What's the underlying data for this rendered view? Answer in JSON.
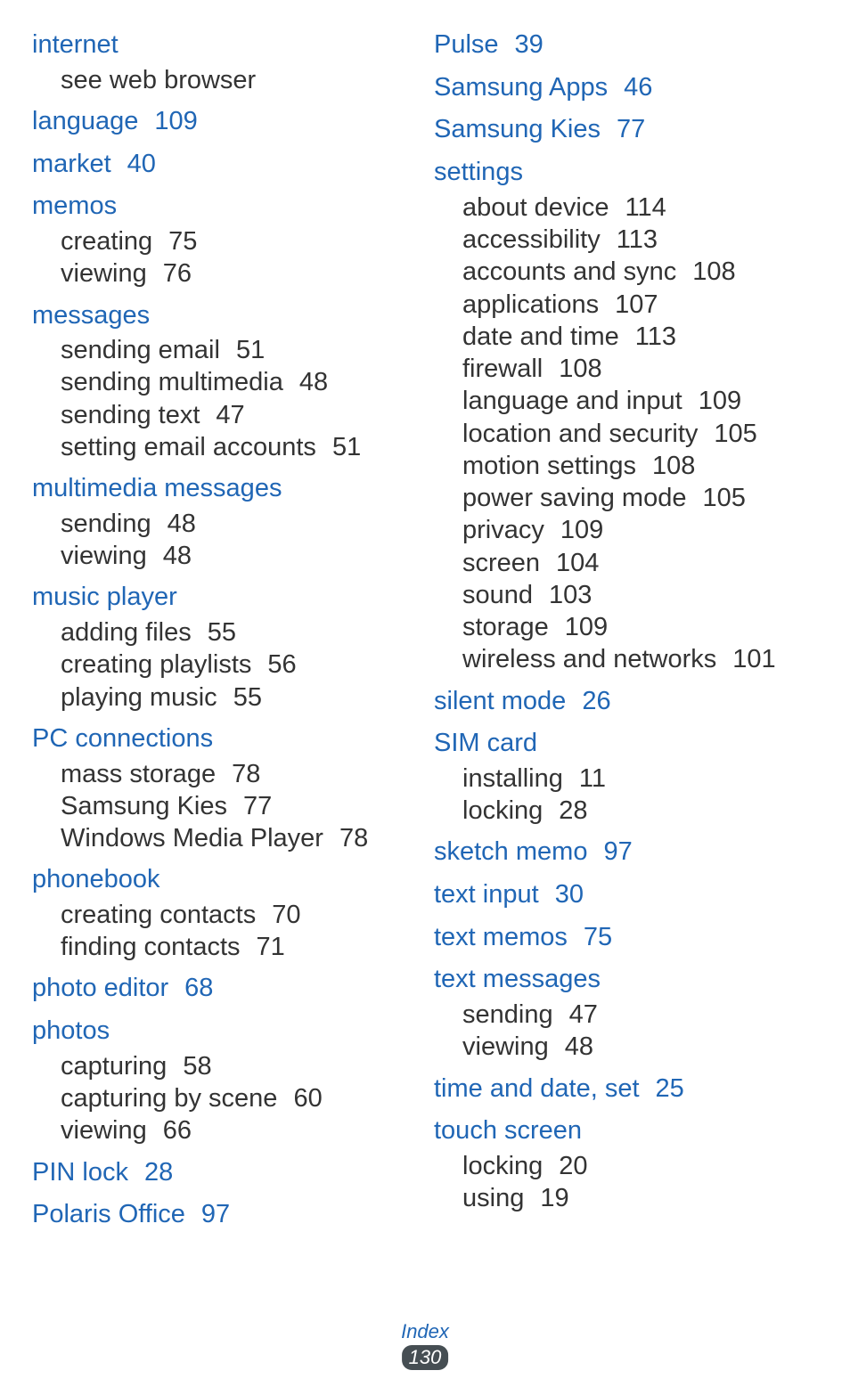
{
  "footer": {
    "section_name": "Index",
    "page_number": "130"
  },
  "left_column": [
    {
      "term": "internet",
      "page": null,
      "subs": [
        {
          "text": "see web browser",
          "page": null
        }
      ]
    },
    {
      "term": "language",
      "page": "109",
      "subs": []
    },
    {
      "term": "market",
      "page": "40",
      "subs": []
    },
    {
      "term": "memos",
      "page": null,
      "subs": [
        {
          "text": "creating",
          "page": "75"
        },
        {
          "text": "viewing",
          "page": "76"
        }
      ]
    },
    {
      "term": "messages",
      "page": null,
      "subs": [
        {
          "text": "sending email",
          "page": "51"
        },
        {
          "text": "sending multimedia",
          "page": "48"
        },
        {
          "text": "sending text",
          "page": "47"
        },
        {
          "text": "setting email accounts",
          "page": "51"
        }
      ]
    },
    {
      "term": "multimedia messages",
      "page": null,
      "subs": [
        {
          "text": "sending",
          "page": "48"
        },
        {
          "text": "viewing",
          "page": "48"
        }
      ]
    },
    {
      "term": "music player",
      "page": null,
      "subs": [
        {
          "text": "adding files",
          "page": "55"
        },
        {
          "text": "creating playlists",
          "page": "56"
        },
        {
          "text": "playing music",
          "page": "55"
        }
      ]
    },
    {
      "term": "PC connections",
      "page": null,
      "subs": [
        {
          "text": "mass storage",
          "page": "78"
        },
        {
          "text": "Samsung Kies",
          "page": "77"
        },
        {
          "text": "Windows Media Player",
          "page": "78"
        }
      ]
    },
    {
      "term": "phonebook",
      "page": null,
      "subs": [
        {
          "text": "creating contacts",
          "page": "70"
        },
        {
          "text": "finding contacts",
          "page": "71"
        }
      ]
    },
    {
      "term": "photo editor",
      "page": "68",
      "subs": []
    },
    {
      "term": "photos",
      "page": null,
      "subs": [
        {
          "text": "capturing",
          "page": "58"
        },
        {
          "text": "capturing by scene",
          "page": "60"
        },
        {
          "text": "viewing",
          "page": "66"
        }
      ]
    },
    {
      "term": "PIN lock",
      "page": "28",
      "subs": []
    },
    {
      "term": "Polaris Office",
      "page": "97",
      "subs": []
    }
  ],
  "right_column": [
    {
      "term": "Pulse",
      "page": "39",
      "subs": []
    },
    {
      "term": "Samsung Apps",
      "page": "46",
      "subs": []
    },
    {
      "term": "Samsung Kies",
      "page": "77",
      "subs": []
    },
    {
      "term": "settings",
      "page": null,
      "subs": [
        {
          "text": "about device",
          "page": "114"
        },
        {
          "text": "accessibility",
          "page": "113"
        },
        {
          "text": "accounts and sync",
          "page": "108"
        },
        {
          "text": "applications",
          "page": "107"
        },
        {
          "text": "date and time",
          "page": "113"
        },
        {
          "text": "firewall",
          "page": "108"
        },
        {
          "text": "language and input",
          "page": "109"
        },
        {
          "text": "location and security",
          "page": "105"
        },
        {
          "text": "motion settings",
          "page": "108"
        },
        {
          "text": "power saving mode",
          "page": "105"
        },
        {
          "text": "privacy",
          "page": "109"
        },
        {
          "text": "screen",
          "page": "104"
        },
        {
          "text": "sound",
          "page": "103"
        },
        {
          "text": "storage",
          "page": "109"
        },
        {
          "text": "wireless and networks",
          "page": "101"
        }
      ]
    },
    {
      "term": "silent mode",
      "page": "26",
      "subs": []
    },
    {
      "term": "SIM card",
      "page": null,
      "subs": [
        {
          "text": "installing",
          "page": "11"
        },
        {
          "text": "locking",
          "page": "28"
        }
      ]
    },
    {
      "term": "sketch memo",
      "page": "97",
      "subs": []
    },
    {
      "term": "text input",
      "page": "30",
      "subs": []
    },
    {
      "term": "text memos",
      "page": "75",
      "subs": []
    },
    {
      "term": "text messages",
      "page": null,
      "subs": [
        {
          "text": "sending",
          "page": "47"
        },
        {
          "text": "viewing",
          "page": "48"
        }
      ]
    },
    {
      "term": "time and date, set",
      "page": "25",
      "subs": []
    },
    {
      "term": "touch screen",
      "page": null,
      "subs": [
        {
          "text": "locking",
          "page": "20"
        },
        {
          "text": "using",
          "page": "19"
        }
      ]
    }
  ]
}
